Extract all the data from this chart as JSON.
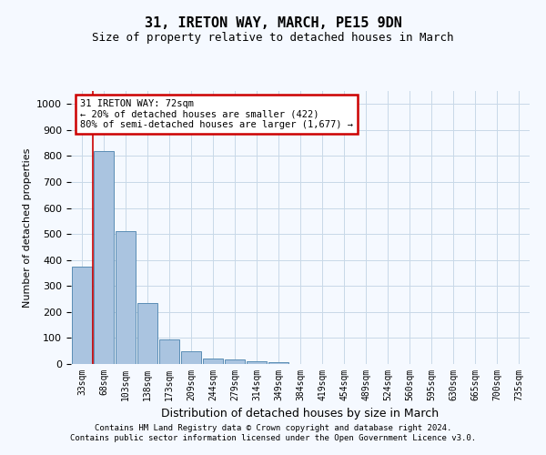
{
  "title1": "31, IRETON WAY, MARCH, PE15 9DN",
  "title2": "Size of property relative to detached houses in March",
  "xlabel": "Distribution of detached houses by size in March",
  "ylabel": "Number of detached properties",
  "bin_labels": [
    "33sqm",
    "68sqm",
    "103sqm",
    "138sqm",
    "173sqm",
    "209sqm",
    "244sqm",
    "279sqm",
    "314sqm",
    "349sqm",
    "384sqm",
    "419sqm",
    "454sqm",
    "489sqm",
    "524sqm",
    "560sqm",
    "595sqm",
    "630sqm",
    "665sqm",
    "700sqm",
    "735sqm"
  ],
  "bar_values": [
    375,
    820,
    510,
    235,
    93,
    50,
    20,
    18,
    12,
    8,
    0,
    0,
    0,
    0,
    0,
    0,
    0,
    0,
    0,
    0,
    0
  ],
  "bar_color": "#aac4e0",
  "bar_edge_color": "#5a8db5",
  "grid_color": "#c8d8e8",
  "vline_x_idx": 1,
  "vline_color": "#cc0000",
  "annotation_text": "31 IRETON WAY: 72sqm\n← 20% of detached houses are smaller (422)\n80% of semi-detached houses are larger (1,677) →",
  "annotation_box_color": "#ffffff",
  "annotation_box_edge": "#cc0000",
  "ylim": [
    0,
    1050
  ],
  "yticks": [
    0,
    100,
    200,
    300,
    400,
    500,
    600,
    700,
    800,
    900,
    1000
  ],
  "footer1": "Contains HM Land Registry data © Crown copyright and database right 2024.",
  "footer2": "Contains public sector information licensed under the Open Government Licence v3.0.",
  "bg_color": "#f5f9ff"
}
